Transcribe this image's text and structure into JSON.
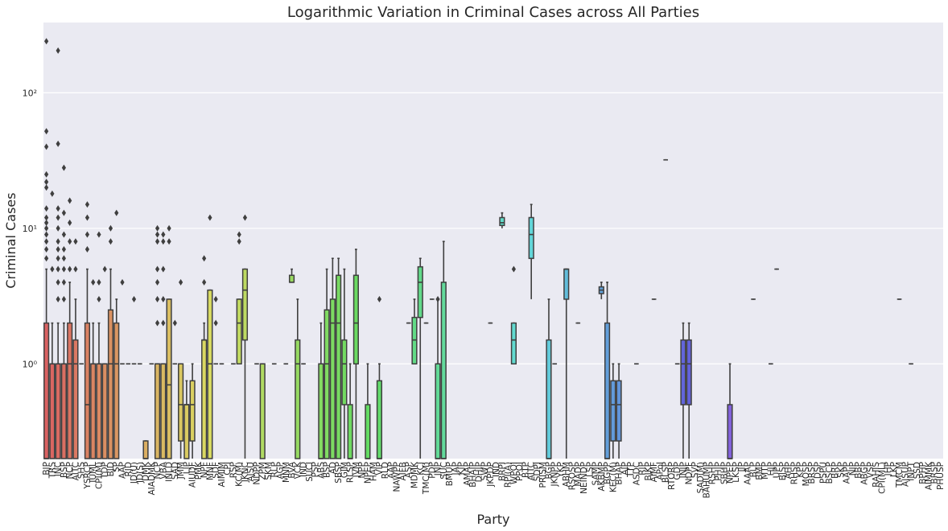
{
  "chart_data": {
    "type": "boxplot",
    "title": "Logarithmic Variation in Criminal Cases across All Parties",
    "xlabel": "Party",
    "ylabel": "Criminal Cases",
    "yscale": "log",
    "ylim": [
      0.2,
      330
    ],
    "yticks": [
      {
        "value": 1,
        "label": "10⁰"
      },
      {
        "value": 10,
        "label": "10¹"
      },
      {
        "value": 100,
        "label": "10²"
      }
    ],
    "grid": true,
    "categories": [
      "BJP",
      "TRS",
      "INC",
      "BSP",
      "NCP",
      "AITC",
      "SHS",
      "YSRCP",
      "IUML",
      "CPI(M)",
      "TDP",
      "BJD",
      "SP",
      "AAP",
      "RJD",
      "JD(U)",
      "JD(S)",
      "DMK",
      "AIADMK",
      "NCP2",
      "VBA",
      "INLD",
      "SAD",
      "JMM",
      "LJP",
      "AIUDF",
      "PMK",
      "NPF",
      "MNF",
      "SDF",
      "AIMIM",
      "CPI",
      "RSP",
      "KC(M)",
      "JKNC",
      "AJSU",
      "NDPP",
      "ZPM",
      "SKM",
      "RLP",
      "AGP",
      "MNM",
      "BVA",
      "VCK",
      "IND",
      "SUCI",
      "PSP",
      "ABS",
      "BSP2",
      "AD",
      "SBSP",
      "GJM",
      "RLSP",
      "JVM",
      "NPP",
      "NPEP",
      "HAM",
      "VIP",
      "RLD",
      "AAP2",
      "NAWPP",
      "AIFB",
      "ASP",
      "MDMK",
      "KCJ",
      "TMC(M)",
      "PDP",
      "JNP",
      "SUC",
      "BMUP",
      "JAP",
      "KJP",
      "AMAP",
      "BHAIP",
      "DHJP",
      "SWP",
      "JKPDP",
      "IND2",
      "BRPI",
      "RPI(A)",
      "WPOI",
      "PPOI",
      "BTP",
      "AITC2",
      "SDPI",
      "PRISM",
      "BGP",
      "JKNPP",
      "YKP",
      "ABHM",
      "RSOSP",
      "MADP",
      "NEINDP",
      "LSP",
      "SAMP",
      "AKBMP",
      "BGPP",
      "KEC(M)",
      "BHAP",
      "AJP",
      "TTP",
      "ASDC",
      "RJP",
      "BJKP",
      "AIMF",
      "APoI",
      "BLSP",
      "RTORP",
      "GDP",
      "JNJP",
      "NDPF",
      "SVP",
      "SAD(M)",
      "BAHUMP",
      "RSHP",
      "PHJP",
      "SBHP",
      "NPEP2",
      "LKSP",
      "JJP",
      "AAAP",
      "BLP",
      "BMP",
      "MTP",
      "HJP",
      "UPP",
      "BJSP",
      "AHP",
      "RHSP",
      "KPP",
      "MOSP",
      "BRSP",
      "DSP",
      "PSPU",
      "BSCP",
      "BRP",
      "SKP",
      "AAPP",
      "NIP",
      "BBP",
      "ABGP",
      "VSP",
      "RAHIS",
      "CPI(ML)",
      "JHP",
      "LKP",
      "TMCM",
      "AJSUP",
      "INPT",
      "SSD",
      "BPHP",
      "AIMMK",
      "BRSP2",
      "PHUSP"
    ],
    "display_labels": [
      "BJP",
      "TRS",
      "INC",
      "BSP",
      "NCP",
      "AITC",
      "SHS",
      "YSRCP",
      "IUML",
      "CPI(M)",
      "TDP",
      "BJD",
      "SP",
      "AAP",
      "RJD",
      "JD(U)",
      "JD(S)",
      "DMK",
      "AIADMK",
      "NCP",
      "VBA",
      "INLD",
      "SAD",
      "JMM",
      "LJP",
      "AIUDF",
      "PMK",
      "NPF",
      "MNF",
      "SDF",
      "AIMIM",
      "CPI",
      "RSP",
      "KC(M)",
      "JKNC",
      "AJSU",
      "NDPP",
      "ZPM",
      "SKM",
      "RLP",
      "AGP",
      "MNM",
      "BVA",
      "VCK",
      "IND",
      "SUCI",
      "PSP",
      "ABS",
      "BSP",
      "AD",
      "SBSP",
      "GJM",
      "RLSP",
      "JVM",
      "NPP",
      "NPEP",
      "HAM",
      "VIP",
      "RLD",
      "AAP",
      "NAWPP",
      "AIFB",
      "ASP",
      "MDMK",
      "KCJ",
      "TMC(M)",
      "PDP",
      "JNP",
      "SUC",
      "BMUP",
      "JAP",
      "KJP",
      "AMAP",
      "BHAIP",
      "DHJP",
      "SWP",
      "JKPDP",
      "IND",
      "BRPI",
      "RPI(A)",
      "WPOI",
      "PPOI",
      "BTP",
      "AITC",
      "SDPI",
      "PRISM",
      "BGP",
      "JKNPP",
      "YKP",
      "ABHM",
      "RSOSP",
      "MADP",
      "NEINDP",
      "LSP",
      "SAMP",
      "AKBMP",
      "BGPP",
      "KEC(M)",
      "BHAP",
      "AJP",
      "TTP",
      "ASDC",
      "RJP",
      "BJKP",
      "AIMF",
      "APoI",
      "BLSP",
      "RTORP",
      "GDP",
      "JNJP",
      "NDPF",
      "SVP",
      "SAD(M)",
      "BAHUMP",
      "RSHP",
      "PHJP",
      "SBHP",
      "NPEP",
      "LKSP",
      "JJP",
      "AAAP",
      "BLP",
      "BMP",
      "MTP",
      "HJP",
      "UPP",
      "BJSP",
      "AHP",
      "RHSP",
      "KPP",
      "MOSP",
      "BRSP",
      "DSP",
      "PSPU",
      "BSCP",
      "BRP",
      "SKP",
      "AAPP",
      "NIP",
      "BBP",
      "ABGP",
      "VSP",
      "RAHIS",
      "CPI(ML)",
      "JHP",
      "LKP",
      "TMCM",
      "AJSUP",
      "INPT",
      "SSD",
      "BPHP",
      "AIMMK",
      "BRSP",
      "PHUSP"
    ],
    "boxes": [
      {
        "i": 0,
        "q1": 0.2,
        "med": 0.2,
        "q3": 2,
        "wlo": 0.2,
        "whi": 5,
        "out": [
          6,
          7,
          8,
          9,
          10,
          11,
          12,
          14,
          20,
          22,
          25,
          40,
          52,
          240
        ]
      },
      {
        "i": 1,
        "q1": 0.2,
        "med": 1,
        "q3": 1,
        "wlo": 0.2,
        "whi": 2,
        "out": [
          5,
          18
        ]
      },
      {
        "i": 2,
        "q1": 0.2,
        "med": 1,
        "q3": 1,
        "wlo": 0.2,
        "whi": 2,
        "out": [
          3,
          4,
          5,
          6,
          7,
          8,
          10,
          12,
          14,
          42,
          205
        ]
      },
      {
        "i": 3,
        "q1": 0.2,
        "med": 1,
        "q3": 1,
        "wlo": 0.2,
        "whi": 2,
        "out": [
          3,
          4,
          5,
          6,
          7,
          9,
          13,
          28
        ]
      },
      {
        "i": 4,
        "q1": 0.2,
        "med": 1,
        "q3": 2,
        "wlo": 0.2,
        "whi": 4,
        "out": [
          5,
          8,
          11,
          16
        ]
      },
      {
        "i": 5,
        "q1": 0.2,
        "med": 1,
        "q3": 1.5,
        "wlo": 0.2,
        "whi": 3,
        "out": [
          5,
          8
        ]
      },
      {
        "i": 6,
        "q1": 1,
        "med": 1,
        "q3": 1,
        "wlo": 1,
        "whi": 1,
        "out": []
      },
      {
        "i": 7,
        "q1": 0.2,
        "med": 0.5,
        "q3": 2,
        "wlo": 0.2,
        "whi": 5,
        "out": [
          7,
          9,
          12,
          15
        ]
      },
      {
        "i": 8,
        "q1": 0.2,
        "med": 1,
        "q3": 1,
        "wlo": 0.2,
        "whi": 2,
        "out": [
          4
        ]
      },
      {
        "i": 9,
        "q1": 0.2,
        "med": 1,
        "q3": 1,
        "wlo": 0.2,
        "whi": 2,
        "out": [
          3,
          4,
          9
        ]
      },
      {
        "i": 10,
        "q1": 0.2,
        "med": 1,
        "q3": 1,
        "wlo": 0.2,
        "whi": 1,
        "out": [
          5
        ]
      },
      {
        "i": 11,
        "q1": 0.2,
        "med": 1,
        "q3": 2.5,
        "wlo": 0.2,
        "whi": 5,
        "out": [
          8,
          10
        ]
      },
      {
        "i": 12,
        "q1": 0.2,
        "med": 1,
        "q3": 2,
        "wlo": 0.2,
        "whi": 3,
        "out": [
          13
        ]
      },
      {
        "i": 13,
        "q1": 1,
        "med": 1,
        "q3": 1,
        "wlo": 1,
        "whi": 1,
        "out": [
          4
        ]
      },
      {
        "i": 14,
        "q1": 1,
        "med": 1,
        "q3": 1,
        "wlo": 1,
        "whi": 1,
        "out": []
      },
      {
        "i": 15,
        "q1": 1,
        "med": 1,
        "q3": 1,
        "wlo": 1,
        "whi": 1,
        "out": [
          3
        ]
      },
      {
        "i": 16,
        "q1": 1,
        "med": 1,
        "q3": 1,
        "wlo": 1,
        "whi": 1,
        "out": []
      },
      {
        "i": 17,
        "q1": 0.2,
        "med": 0.2,
        "q3": 0.27,
        "wlo": 0.2,
        "whi": 0.27,
        "out": []
      },
      {
        "i": 18,
        "q1": 1,
        "med": 1,
        "q3": 1,
        "wlo": 1,
        "whi": 1,
        "out": []
      },
      {
        "i": 19,
        "q1": 0.2,
        "med": 1,
        "q3": 1,
        "wlo": 0.2,
        "whi": 1,
        "out": [
          2,
          3,
          4,
          5,
          8,
          9,
          10
        ]
      },
      {
        "i": 20,
        "q1": 0.2,
        "med": 1,
        "q3": 1,
        "wlo": 0.2,
        "whi": 1,
        "out": [
          2,
          3,
          5,
          8,
          9
        ]
      },
      {
        "i": 21,
        "q1": 0.2,
        "med": 0.7,
        "q3": 3,
        "wlo": 0.2,
        "whi": 3,
        "out": [
          8,
          10
        ]
      },
      {
        "i": 22,
        "q1": 1,
        "med": 1,
        "q3": 1,
        "wlo": 1,
        "whi": 1,
        "out": [
          2
        ]
      },
      {
        "i": 23,
        "q1": 0.27,
        "med": 0.5,
        "q3": 1,
        "wlo": 0.2,
        "whi": 1,
        "out": [
          4
        ]
      },
      {
        "i": 24,
        "q1": 0.2,
        "med": 0.5,
        "q3": 0.5,
        "wlo": 0.2,
        "whi": 0.75,
        "out": []
      },
      {
        "i": 25,
        "q1": 0.27,
        "med": 0.5,
        "q3": 0.75,
        "wlo": 0.2,
        "whi": 1,
        "out": []
      },
      {
        "i": 27,
        "q1": 0.2,
        "med": 1.5,
        "q3": 1.5,
        "wlo": 0.2,
        "whi": 2,
        "out": [
          4,
          6
        ]
      },
      {
        "i": 28,
        "q1": 0.2,
        "med": 1,
        "q3": 3.5,
        "wlo": 0.2,
        "whi": 3.5,
        "out": [
          12
        ]
      },
      {
        "i": 29,
        "q1": 1,
        "med": 1,
        "q3": 1,
        "wlo": 1,
        "whi": 1,
        "out": [
          2,
          3
        ]
      },
      {
        "i": 30,
        "q1": 1,
        "med": 1,
        "q3": 1,
        "wlo": 1,
        "whi": 1,
        "out": []
      },
      {
        "i": 32,
        "q1": 1,
        "med": 1,
        "q3": 1,
        "wlo": 1,
        "whi": 1,
        "out": []
      },
      {
        "i": 33,
        "q1": 1,
        "med": 2,
        "q3": 3,
        "wlo": 1,
        "whi": 3,
        "out": [
          8,
          9
        ]
      },
      {
        "i": 34,
        "q1": 1.5,
        "med": 3.5,
        "q3": 5,
        "wlo": 0.2,
        "whi": 5,
        "out": [
          12
        ]
      },
      {
        "i": 36,
        "q1": 1,
        "med": 1,
        "q3": 1,
        "wlo": 1,
        "whi": 1,
        "out": []
      },
      {
        "i": 37,
        "q1": 0.2,
        "med": 1,
        "q3": 1,
        "wlo": 0.2,
        "whi": 1,
        "out": []
      },
      {
        "i": 39,
        "q1": 1,
        "med": 1,
        "q3": 1,
        "wlo": 1,
        "whi": 1,
        "out": []
      },
      {
        "i": 41,
        "q1": 1,
        "med": 1,
        "q3": 1,
        "wlo": 1,
        "whi": 1,
        "out": []
      },
      {
        "i": 42,
        "q1": 4,
        "med": 4,
        "q3": 4.5,
        "wlo": 4,
        "whi": 5,
        "out": []
      },
      {
        "i": 43,
        "q1": 0.2,
        "med": 1,
        "q3": 1.5,
        "wlo": 0.2,
        "whi": 3,
        "out": []
      },
      {
        "i": 44,
        "q1": 1,
        "med": 1,
        "q3": 1,
        "wlo": 1,
        "whi": 1,
        "out": []
      },
      {
        "i": 47,
        "q1": 0.2,
        "med": 0.2,
        "q3": 1,
        "wlo": 0.2,
        "whi": 2,
        "out": []
      },
      {
        "i": 48,
        "q1": 0.2,
        "med": 1,
        "q3": 2.5,
        "wlo": 0.2,
        "whi": 5,
        "out": []
      },
      {
        "i": 49,
        "q1": 0.2,
        "med": 2,
        "q3": 3,
        "wlo": 0.2,
        "whi": 6,
        "out": []
      },
      {
        "i": 50,
        "q1": 0.2,
        "med": 2,
        "q3": 4.5,
        "wlo": 0.2,
        "whi": 6,
        "out": []
      },
      {
        "i": 51,
        "q1": 0.5,
        "med": 1,
        "q3": 1.5,
        "wlo": 0.2,
        "whi": 5,
        "out": []
      },
      {
        "i": 52,
        "q1": 0.2,
        "med": 0.2,
        "q3": 0.5,
        "wlo": 0.2,
        "whi": 1,
        "out": []
      },
      {
        "i": 53,
        "q1": 1,
        "med": 2,
        "q3": 4.5,
        "wlo": 0.2,
        "whi": 7,
        "out": []
      },
      {
        "i": 55,
        "q1": 0.2,
        "med": 0.2,
        "q3": 0.5,
        "wlo": 0.2,
        "whi": 1,
        "out": []
      },
      {
        "i": 57,
        "q1": 0.2,
        "med": 0.2,
        "q3": 0.75,
        "wlo": 0.2,
        "whi": 1,
        "out": [
          3
        ]
      },
      {
        "i": 62,
        "q1": 2,
        "med": 2,
        "q3": 2,
        "wlo": 2,
        "whi": 2,
        "out": []
      },
      {
        "i": 63,
        "q1": 1,
        "med": 1.5,
        "q3": 2.2,
        "wlo": 1,
        "whi": 3,
        "out": []
      },
      {
        "i": 64,
        "q1": 2.2,
        "med": 4,
        "q3": 5.2,
        "wlo": 0.2,
        "whi": 6,
        "out": []
      },
      {
        "i": 65,
        "q1": 2,
        "med": 2,
        "q3": 2,
        "wlo": 2,
        "whi": 2,
        "out": []
      },
      {
        "i": 66,
        "q1": 3,
        "med": 3,
        "q3": 3,
        "wlo": 3,
        "whi": 3,
        "out": []
      },
      {
        "i": 67,
        "q1": 0.2,
        "med": 0.2,
        "q3": 1,
        "wlo": 0.2,
        "whi": 3,
        "out": [
          3
        ]
      },
      {
        "i": 68,
        "q1": 0.2,
        "med": 0.2,
        "q3": 4,
        "wlo": 0.2,
        "whi": 8,
        "out": []
      },
      {
        "i": 76,
        "q1": 2,
        "med": 2,
        "q3": 2,
        "wlo": 2,
        "whi": 2,
        "out": []
      },
      {
        "i": 78,
        "q1": 10.5,
        "med": 11,
        "q3": 12,
        "wlo": 10,
        "whi": 13,
        "out": []
      },
      {
        "i": 80,
        "q1": 1,
        "med": 1.5,
        "q3": 2,
        "wlo": 1,
        "whi": 2,
        "out": [
          5
        ]
      },
      {
        "i": 83,
        "q1": 6,
        "med": 9,
        "q3": 12,
        "wlo": 3,
        "whi": 15,
        "out": []
      },
      {
        "i": 86,
        "q1": 0.2,
        "med": 0.2,
        "q3": 1.5,
        "wlo": 0.2,
        "whi": 3,
        "out": []
      },
      {
        "i": 87,
        "q1": 1,
        "med": 1,
        "q3": 1,
        "wlo": 1,
        "whi": 1,
        "out": []
      },
      {
        "i": 89,
        "q1": 3,
        "med": 5,
        "q3": 5,
        "wlo": 0.2,
        "whi": 5,
        "out": []
      },
      {
        "i": 91,
        "q1": 2,
        "med": 2,
        "q3": 2,
        "wlo": 2,
        "whi": 2,
        "out": []
      },
      {
        "i": 95,
        "q1": 3.3,
        "med": 3.5,
        "q3": 3.7,
        "wlo": 3,
        "whi": 4,
        "out": []
      },
      {
        "i": 96,
        "q1": 0.2,
        "med": 0.2,
        "q3": 2,
        "wlo": 0.2,
        "whi": 4,
        "out": []
      },
      {
        "i": 97,
        "q1": 0.27,
        "med": 0.5,
        "q3": 0.75,
        "wlo": 0.2,
        "whi": 1,
        "out": []
      },
      {
        "i": 98,
        "q1": 0.27,
        "med": 0.5,
        "q3": 0.75,
        "wlo": 0.2,
        "whi": 1,
        "out": []
      },
      {
        "i": 101,
        "q1": 1,
        "med": 1,
        "q3": 1,
        "wlo": 1,
        "whi": 1,
        "out": []
      },
      {
        "i": 104,
        "q1": 3,
        "med": 3,
        "q3": 3,
        "wlo": 3,
        "whi": 3,
        "out": []
      },
      {
        "i": 106,
        "q1": 32,
        "med": 32,
        "q3": 32,
        "wlo": 32,
        "whi": 32,
        "out": []
      },
      {
        "i": 108,
        "q1": 1,
        "med": 1,
        "q3": 1,
        "wlo": 1,
        "whi": 1,
        "out": []
      },
      {
        "i": 109,
        "q1": 0.5,
        "med": 1,
        "q3": 1.5,
        "wlo": 0.2,
        "whi": 2,
        "out": []
      },
      {
        "i": 110,
        "q1": 0.5,
        "med": 1,
        "q3": 1.5,
        "wlo": 0.2,
        "whi": 2,
        "out": []
      },
      {
        "i": 117,
        "q1": 0.2,
        "med": 0.2,
        "q3": 0.5,
        "wlo": 0.2,
        "whi": 1,
        "out": []
      },
      {
        "i": 121,
        "q1": 3,
        "med": 3,
        "q3": 3,
        "wlo": 3,
        "whi": 3,
        "out": []
      },
      {
        "i": 124,
        "q1": 1,
        "med": 1,
        "q3": 1,
        "wlo": 1,
        "whi": 1,
        "out": []
      },
      {
        "i": 125,
        "q1": 5,
        "med": 5,
        "q3": 5,
        "wlo": 5,
        "whi": 5,
        "out": []
      },
      {
        "i": 146,
        "q1": 3,
        "med": 3,
        "q3": 3,
        "wlo": 3,
        "whi": 3,
        "out": []
      },
      {
        "i": 148,
        "q1": 1,
        "med": 1,
        "q3": 1,
        "wlo": 1,
        "whi": 1,
        "out": []
      }
    ]
  },
  "colors": {
    "plot_background": "#eaeaf2",
    "grid": "#ffffff",
    "outline": "#3f3f3f"
  }
}
